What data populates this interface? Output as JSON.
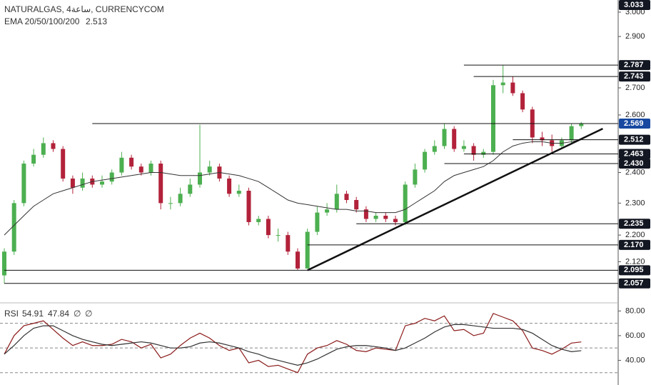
{
  "header": {
    "symbol": "NATURALGAS, 4ساعة, CURRENCYCOM",
    "indicator": "EMA 20/50/100/200",
    "indicator_value": 2.513
  },
  "chart_data": [
    {
      "type": "candlestick",
      "log": true,
      "ylim": [
        2.01,
        3.051
      ],
      "yticks": [
        {
          "value": 3.0,
          "label": "3.000"
        },
        {
          "value": 2.9,
          "label": "2.900"
        },
        {
          "value": 2.7,
          "label": "2.700"
        },
        {
          "value": 2.6,
          "label": "2.600"
        },
        {
          "value": 2.4,
          "label": "2.400"
        },
        {
          "value": 2.3,
          "label": "2.300"
        },
        {
          "value": 2.2,
          "label": "2.200"
        },
        {
          "value": 2.12,
          "label": "2.120"
        }
      ],
      "up_color": "#4caf50",
      "down_color": "#b2223a",
      "box_color": "#131722",
      "open": [
        2.08,
        2.15,
        2.3,
        2.43,
        2.46,
        2.5,
        2.48,
        2.38,
        2.35,
        2.38,
        2.36,
        2.37,
        2.4,
        2.45,
        2.42,
        2.4,
        2.43,
        2.3,
        2.3,
        2.33,
        2.36,
        2.4,
        2.42,
        2.38,
        2.33,
        2.34,
        2.24,
        2.25,
        2.2,
        2.2,
        2.15,
        2.1,
        2.21,
        2.27,
        2.28,
        2.33,
        2.31,
        2.28,
        2.25,
        2.26,
        2.25,
        2.24,
        2.36,
        2.41,
        2.47,
        2.49,
        2.55,
        2.48,
        2.49,
        2.46,
        2.47,
        2.71,
        2.72,
        2.68,
        2.62,
        2.52,
        2.51,
        2.49,
        2.51,
        2.56
      ],
      "high": [
        2.16,
        2.31,
        2.44,
        2.48,
        2.52,
        2.51,
        2.49,
        2.39,
        2.4,
        2.39,
        2.39,
        2.41,
        2.47,
        2.46,
        2.43,
        2.44,
        2.44,
        2.32,
        2.35,
        2.38,
        2.565,
        2.44,
        2.43,
        2.39,
        2.36,
        2.35,
        2.26,
        2.26,
        2.22,
        2.21,
        2.16,
        2.22,
        2.29,
        2.3,
        2.36,
        2.34,
        2.32,
        2.29,
        2.27,
        2.27,
        2.26,
        2.37,
        2.43,
        2.48,
        2.51,
        2.57,
        2.56,
        2.51,
        2.5,
        2.48,
        2.73,
        2.787,
        2.743,
        2.69,
        2.63,
        2.54,
        2.53,
        2.52,
        2.57,
        2.575
      ],
      "low": [
        2.057,
        2.14,
        2.29,
        2.42,
        2.45,
        2.47,
        2.37,
        2.33,
        2.34,
        2.35,
        2.35,
        2.36,
        2.39,
        2.41,
        2.39,
        2.39,
        2.28,
        2.28,
        2.29,
        2.32,
        2.35,
        2.39,
        2.37,
        2.32,
        2.32,
        2.23,
        2.23,
        2.19,
        2.18,
        2.14,
        2.095,
        2.1,
        2.2,
        2.26,
        2.27,
        2.3,
        2.27,
        2.24,
        2.24,
        2.24,
        2.23,
        2.23,
        2.35,
        2.4,
        2.46,
        2.48,
        2.47,
        2.47,
        2.44,
        2.45,
        2.46,
        2.68,
        2.67,
        2.61,
        2.5,
        2.49,
        2.47,
        2.48,
        2.5,
        2.55
      ],
      "close": [
        2.15,
        2.3,
        2.43,
        2.46,
        2.5,
        2.48,
        2.38,
        2.35,
        2.38,
        2.36,
        2.37,
        2.4,
        2.45,
        2.42,
        2.4,
        2.43,
        2.3,
        2.3,
        2.33,
        2.36,
        2.4,
        2.42,
        2.38,
        2.33,
        2.34,
        2.24,
        2.25,
        2.2,
        2.2,
        2.15,
        2.1,
        2.21,
        2.27,
        2.28,
        2.33,
        2.31,
        2.28,
        2.25,
        2.26,
        2.25,
        2.24,
        2.36,
        2.41,
        2.47,
        2.49,
        2.55,
        2.48,
        2.49,
        2.46,
        2.47,
        2.71,
        2.72,
        2.68,
        2.62,
        2.52,
        2.51,
        2.49,
        2.51,
        2.56,
        2.569
      ],
      "ema": {
        "color": "#333333",
        "values": [
          2.2,
          2.23,
          2.26,
          2.29,
          2.31,
          2.33,
          2.34,
          2.35,
          2.36,
          2.37,
          2.375,
          2.38,
          2.385,
          2.39,
          2.395,
          2.4,
          2.4,
          2.395,
          2.39,
          2.39,
          2.39,
          2.395,
          2.4,
          2.395,
          2.39,
          2.38,
          2.37,
          2.35,
          2.33,
          2.31,
          2.3,
          2.295,
          2.29,
          2.285,
          2.28,
          2.28,
          2.275,
          2.275,
          2.27,
          2.27,
          2.27,
          2.28,
          2.3,
          2.32,
          2.34,
          2.37,
          2.39,
          2.4,
          2.41,
          2.42,
          2.44,
          2.47,
          2.49,
          2.5,
          2.505,
          2.505,
          2.5,
          2.5,
          2.505,
          2.513
        ]
      },
      "levels": [
        {
          "value": 3.033
        },
        {
          "value": 2.787,
          "from": 47
        },
        {
          "value": 2.743,
          "from": 48
        },
        {
          "value": 2.569,
          "from": 9,
          "color": "#1848a0"
        },
        {
          "value": 2.512,
          "from": 52
        },
        {
          "value": 2.463,
          "from": 47
        },
        {
          "value": 2.43,
          "label": "2.430",
          "from": 45
        },
        {
          "value": 2.235,
          "from": 36
        },
        {
          "value": 2.17,
          "label": "2.170",
          "from": 31
        },
        {
          "value": 2.095,
          "from": 0
        },
        {
          "value": 2.057,
          "from": 0
        }
      ],
      "trendline": {
        "x": [
          31,
          61.2
        ],
        "y": [
          2.095,
          2.551
        ],
        "color": "#111111"
      }
    },
    {
      "type": "line",
      "title": "RSI",
      "value": 54.91,
      "ma_value": 47.84,
      "extra": [
        "∅",
        "∅"
      ],
      "ylim": [
        20,
        86
      ],
      "yticks": [
        {
          "value": 80,
          "label": "80.00"
        },
        {
          "value": 60,
          "label": "60.00"
        },
        {
          "value": 40,
          "label": "40.00"
        }
      ],
      "bands": [
        70,
        50,
        30
      ],
      "series": [
        {
          "color": "#8b1a1a",
          "values": [
            45,
            60,
            68,
            70,
            72,
            65,
            58,
            52,
            55,
            52,
            52,
            53,
            57,
            55,
            50,
            53,
            42,
            45,
            52,
            58,
            62,
            58,
            52,
            48,
            50,
            38,
            40,
            35,
            36,
            33,
            30,
            45,
            50,
            52,
            56,
            53,
            48,
            47,
            50,
            49,
            48,
            68,
            70,
            74,
            72,
            76,
            64,
            65,
            60,
            62,
            78,
            75,
            72,
            64,
            50,
            48,
            45,
            49,
            54,
            54.91
          ]
        },
        {
          "color": "#333333",
          "values": [
            45,
            52,
            60,
            66,
            68,
            68,
            64,
            60,
            57,
            55,
            53,
            52,
            53,
            54,
            55,
            54,
            52,
            50,
            50,
            51,
            54,
            55,
            54,
            52,
            50,
            47,
            45,
            42,
            40,
            38,
            36,
            38,
            41,
            45,
            49,
            51,
            52,
            52,
            51,
            50,
            48,
            50,
            54,
            58,
            63,
            67,
            69,
            69,
            68,
            67,
            66,
            66,
            66,
            65,
            62,
            57,
            52,
            49,
            47,
            47.84
          ]
        }
      ]
    }
  ]
}
